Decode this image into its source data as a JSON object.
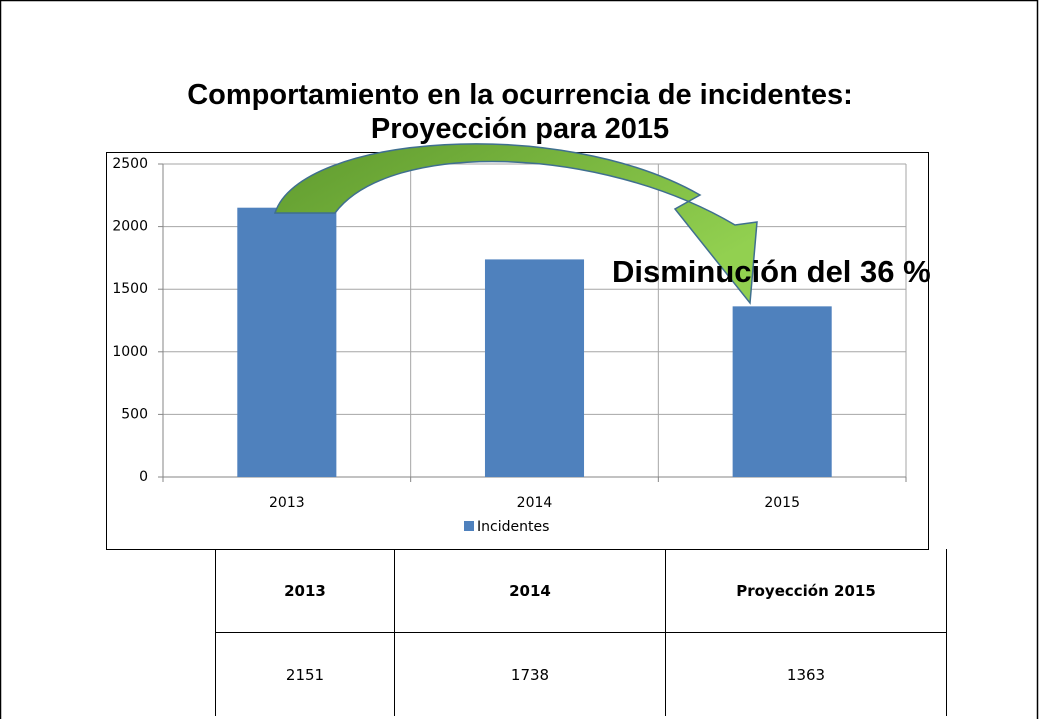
{
  "chart_data": {
    "type": "bar",
    "title": "Comportamiento en la ocurrencia de incidentes: Proyección para 2015",
    "categories": [
      "2013",
      "2014",
      "2015"
    ],
    "series": [
      {
        "name": "Incidentes",
        "color": "#4f81bd",
        "values": [
          2151,
          1738,
          1363
        ]
      }
    ],
    "ylim": [
      0,
      2500
    ],
    "yticks": [
      0,
      500,
      1000,
      1500,
      2000,
      2500
    ],
    "grid": true,
    "legend": "bottom",
    "annotation": "Disminución del 36 %"
  },
  "table": {
    "header": [
      "2013",
      "2014",
      "Proyección 2015"
    ],
    "rows": [
      [
        "2151",
        "1738",
        "1363"
      ]
    ]
  }
}
